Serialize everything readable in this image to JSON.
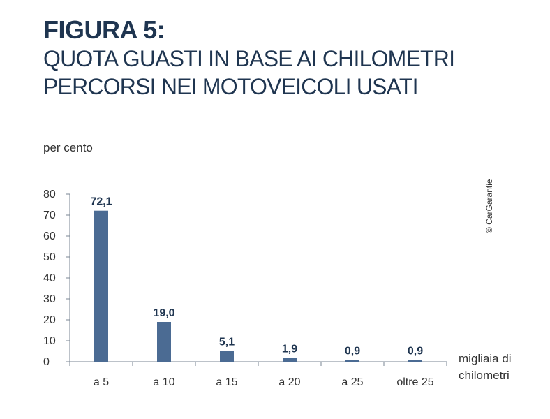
{
  "figure_label": "FIGURA 5:",
  "title": "QUOTA GUASTI IN BASE AI CHILOMETRI\nPERCORSI NEI MOTOVEICOLI USATI",
  "copyright": "© CarGarantie",
  "chart_data": {
    "type": "bar",
    "ylabel": "per cento",
    "xlabel": "migliaia di\nchilometri",
    "categories": [
      "a 5",
      "a 10",
      "a 15",
      "a 20",
      "a 25",
      "oltre 25"
    ],
    "values": [
      72.1,
      19.0,
      5.1,
      1.9,
      0.9,
      0.9
    ],
    "value_labels": [
      "72,1",
      "19,0",
      "5,1",
      "1,9",
      "0,9",
      "0,9"
    ],
    "yticks": [
      "0",
      "10",
      "20",
      "30",
      "40",
      "50",
      "60",
      "70",
      "80"
    ],
    "ylim": [
      0,
      80
    ],
    "grid": false,
    "bar_color": "#4b6b93"
  }
}
